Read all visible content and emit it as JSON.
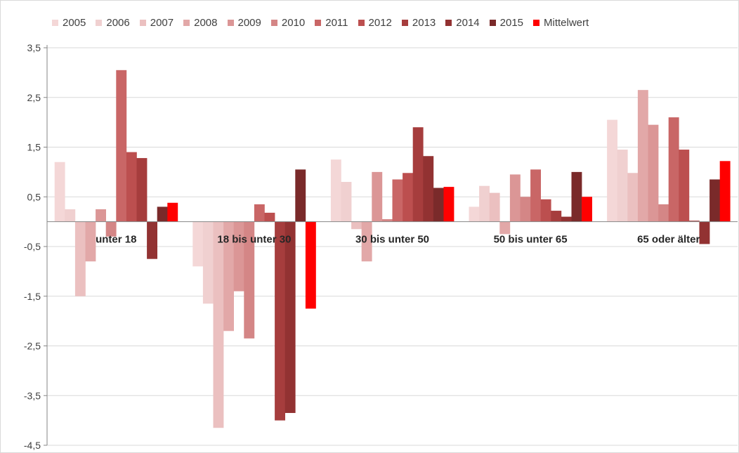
{
  "chart_data": {
    "type": "bar",
    "categories": [
      "unter 18",
      "18 bis unter 30",
      "30 bis unter 50",
      "50 bis unter 65",
      "65 oder älter"
    ],
    "series": [
      {
        "name": "2005",
        "color": "#f4d7d7",
        "values": [
          1.2,
          -0.9,
          1.25,
          0.3,
          2.05
        ]
      },
      {
        "name": "2006",
        "color": "#f0d0d0",
        "values": [
          0.25,
          -1.65,
          0.8,
          0.72,
          1.45
        ]
      },
      {
        "name": "2007",
        "color": "#ebc0c0",
        "values": [
          -1.5,
          -4.15,
          -0.15,
          0.58,
          0.98
        ]
      },
      {
        "name": "2008",
        "color": "#e2a8a8",
        "values": [
          -0.8,
          -2.2,
          -0.8,
          -0.25,
          2.65
        ]
      },
      {
        "name": "2009",
        "color": "#db9696",
        "values": [
          0.25,
          -1.4,
          1.0,
          0.95,
          1.95
        ]
      },
      {
        "name": "2010",
        "color": "#d48686",
        "values": [
          -0.3,
          -2.35,
          0.05,
          0.5,
          0.35
        ]
      },
      {
        "name": "2011",
        "color": "#c96666",
        "values": [
          3.05,
          0.35,
          0.85,
          1.05,
          2.1
        ]
      },
      {
        "name": "2012",
        "color": "#bc4f4f",
        "values": [
          1.4,
          0.18,
          0.98,
          0.45,
          1.45
        ]
      },
      {
        "name": "2013",
        "color": "#a63d3d",
        "values": [
          1.28,
          -4.0,
          1.9,
          0.22,
          0.02
        ]
      },
      {
        "name": "2014",
        "color": "#923232",
        "values": [
          -0.75,
          -3.85,
          1.32,
          0.1,
          -0.45
        ]
      },
      {
        "name": "2015",
        "color": "#7a2a2a",
        "values": [
          0.3,
          1.05,
          0.68,
          1.0,
          0.85
        ]
      },
      {
        "name": "Mittelwert",
        "color": "#ff0000",
        "values": [
          0.38,
          -1.75,
          0.7,
          0.5,
          1.22
        ]
      }
    ],
    "yticks": [
      3.5,
      2.5,
      1.5,
      0.5,
      -0.5,
      -1.5,
      -2.5,
      -3.5,
      -4.5
    ],
    "ytick_labels": [
      "3,5",
      "2,5",
      "1,5",
      "0,5",
      "-0,5",
      "-1,5",
      "-2,5",
      "-3,5",
      "-4,5"
    ],
    "ylim": [
      -4.5,
      3.5
    ],
    "grid": true,
    "legend_position": "top"
  }
}
